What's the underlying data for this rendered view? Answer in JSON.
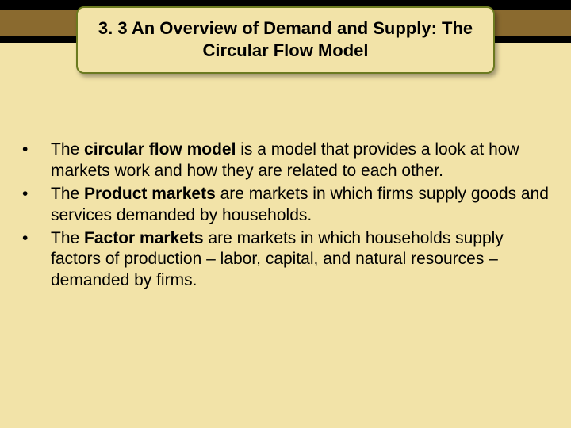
{
  "slide": {
    "background_color": "#f2e3a8",
    "topbar_color": "#000000",
    "strip_color": "#8a6a2f",
    "title_border_color": "#6b7a1f",
    "title": "3. 3 An Overview of Demand and Supply: The Circular Flow Model",
    "bullets": [
      {
        "marker": "•",
        "prefix": "The ",
        "bold": "circular flow model",
        "rest": " is a model that provides a look at how markets work and how they are related to each other."
      },
      {
        "marker": "•",
        "prefix": "The ",
        "bold": "Product markets",
        "rest": " are markets in which firms supply goods and services demanded by households."
      },
      {
        "marker": "•",
        "prefix": "The ",
        "bold": "Factor markets",
        "rest": " are markets in which households supply factors of production – labor, capital, and natural resources – demanded by firms."
      }
    ],
    "font_family": "Verdana",
    "title_fontsize": 22,
    "body_fontsize": 21
  }
}
